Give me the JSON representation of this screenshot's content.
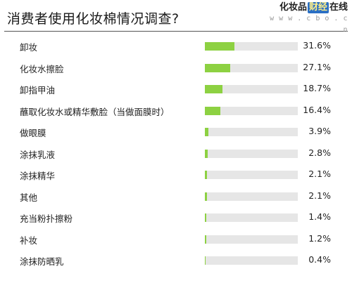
{
  "header": {
    "title": "消费者使用化妆棉情况调查?",
    "logo_prefix": "化妆品",
    "logo_mark": "财经",
    "logo_suffix": "在线",
    "logo_url": "w w w . c b o . c n"
  },
  "colors": {
    "bar_fill": "#8dd142",
    "bar_track": "#e6e6e6",
    "logo_mark_bg": "#2b6fc4"
  },
  "chart_data": {
    "type": "bar",
    "orientation": "horizontal",
    "title": "消费者使用化妆棉情况调查?",
    "categories": [
      "卸妆",
      "化妆水擦脸",
      "卸指甲油",
      "蘸取化妆水或精华敷脸（当做面膜时）",
      "做眼膜",
      "涂抹乳液",
      "涂抹精华",
      "其他",
      "充当粉扑擦粉",
      "补妆",
      "涂抹防晒乳"
    ],
    "values": [
      31.6,
      27.1,
      18.7,
      16.4,
      3.9,
      2.8,
      2.1,
      2.1,
      1.4,
      1.2,
      0.4
    ],
    "value_labels": [
      "31.6%",
      "27.1%",
      "18.7%",
      "16.4%",
      "3.9%",
      "2.8%",
      "2.1%",
      "2.1%",
      "1.4%",
      "1.2%",
      "0.4%"
    ],
    "xlim": [
      0,
      100
    ],
    "grid": false,
    "legend": "none"
  }
}
